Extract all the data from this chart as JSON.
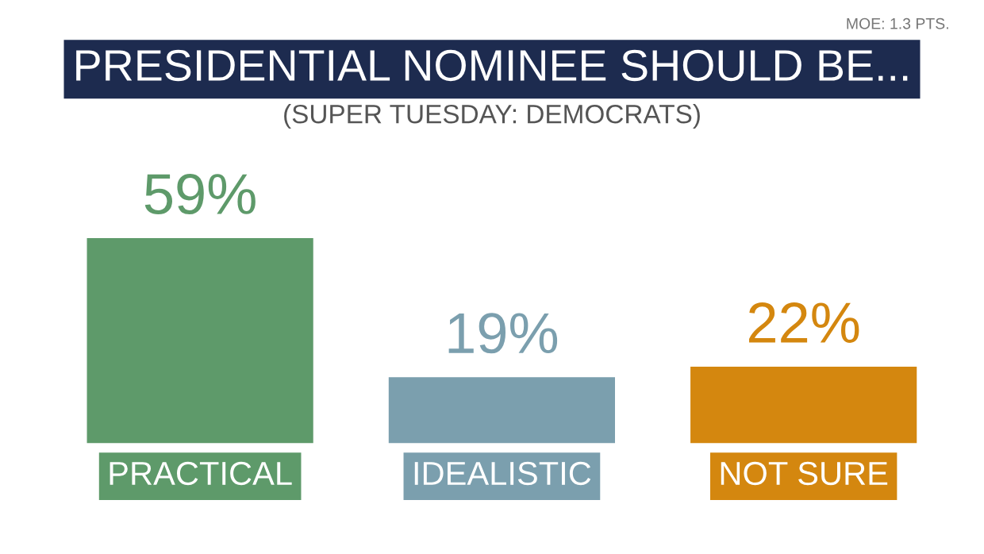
{
  "chart_data": {
    "type": "bar",
    "title": "PRESIDENTIAL NOMINEE SHOULD BE...",
    "subtitle": "(SUPER TUESDAY: DEMOCRATS)",
    "annotations": [
      "MOE: 1.3 PTS."
    ],
    "categories": [
      "PRACTICAL",
      "IDEALISTIC",
      "NOT SURE"
    ],
    "values": [
      59,
      19,
      22
    ],
    "colors": [
      "#5e9a6a",
      "#7b9fae",
      "#d4870f"
    ],
    "value_labels": [
      "59%",
      "19%",
      "22%"
    ],
    "grid": false,
    "legend": false
  }
}
